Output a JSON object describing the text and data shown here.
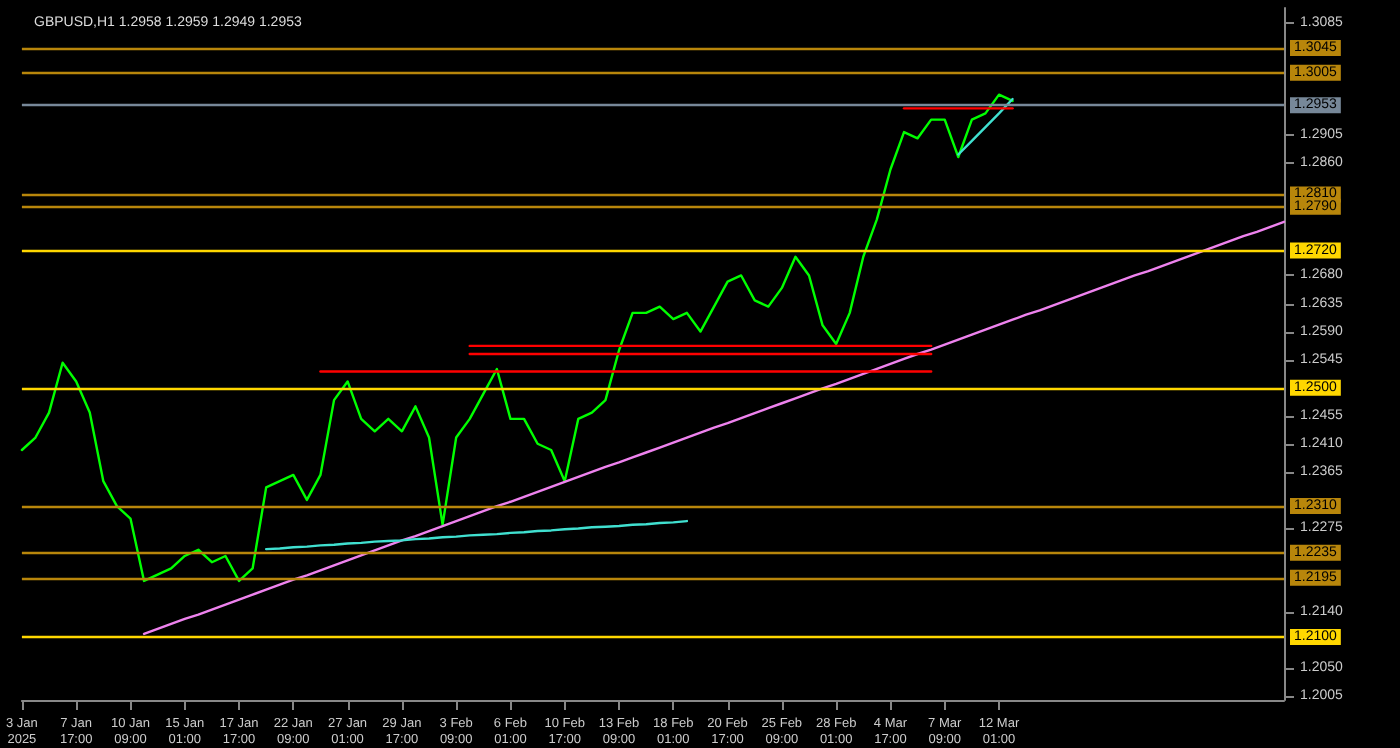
{
  "chart_data": {
    "type": "line",
    "title": "GBPUSD,H1 1.2958 1.2959 1.2949 1.2953",
    "marker": "none",
    "line_style": "solid",
    "categories": [
      "3 Jan 2025",
      null,
      null,
      null,
      "7 Jan 17:00",
      null,
      null,
      null,
      "10 Jan 09:00",
      null,
      null,
      null,
      "15 Jan 01:00",
      null,
      null,
      null,
      "17 Jan 17:00",
      null,
      null,
      null,
      "22 Jan 09:00",
      null,
      null,
      null,
      "27 Jan 01:00",
      null,
      null,
      null,
      "29 Jan 17:00",
      null,
      null,
      null,
      "3 Feb 09:00",
      null,
      null,
      null,
      "6 Feb 01:00",
      null,
      null,
      null,
      "10 Feb 17:00",
      null,
      null,
      null,
      "13 Feb 09:00",
      null,
      null,
      null,
      "18 Feb 01:00",
      null,
      null,
      null,
      "20 Feb 17:00",
      null,
      null,
      null,
      "25 Feb 09:00",
      null,
      null,
      null,
      "28 Feb 01:00",
      null,
      null,
      null,
      "4 Mar 17:00",
      null,
      null,
      null,
      "7 Mar 09:00",
      null,
      null,
      null,
      "12 Mar 01:00",
      null,
      null,
      null,
      null,
      null,
      null,
      null,
      null,
      null,
      null,
      null,
      null,
      null,
      null,
      null,
      null,
      null,
      null,
      null,
      null,
      null
    ],
    "ylim": [
      1.1999,
      1.3109
    ],
    "yticks": [
      1.2005,
      {
        "value": 1.205,
        "label": "1.2050"
      },
      {
        "value": 1.214,
        "label": "1.2140"
      },
      1.2275,
      1.2365,
      {
        "value": 1.241,
        "label": "1.2410"
      },
      1.2455,
      1.2545,
      {
        "value": 1.259,
        "label": "1.2590"
      },
      1.2635,
      {
        "value": 1.268,
        "label": "1.2680"
      },
      {
        "value": 1.286,
        "label": "1.2860"
      },
      1.2905,
      1.3085
    ],
    "series": [
      {
        "type": "line",
        "color": "#00ff00",
        "values": [
          1.24,
          1.242,
          1.246,
          1.254,
          1.251,
          1.246,
          1.235,
          1.231,
          1.229,
          1.219,
          1.22,
          1.221,
          1.223,
          1.224,
          1.222,
          1.223,
          1.219,
          1.221,
          1.234,
          1.235,
          1.236,
          1.232,
          1.236,
          1.248,
          1.251,
          1.245,
          1.243,
          1.245,
          1.243,
          1.247,
          1.242,
          1.228,
          1.242,
          1.245,
          1.249,
          1.253,
          1.245,
          1.245,
          1.241,
          1.24,
          1.235,
          1.245,
          1.246,
          1.248,
          1.256,
          1.262,
          1.262,
          1.263,
          1.261,
          1.262,
          1.259,
          1.263,
          1.267,
          1.268,
          1.264,
          1.263,
          1.266,
          1.271,
          1.268,
          1.26,
          1.257,
          1.262,
          1.271,
          1.277,
          1.285,
          1.291,
          1.29,
          1.293,
          1.293,
          1.287,
          1.293,
          1.294,
          1.297,
          1.296,
          null,
          null,
          null,
          null,
          null,
          null,
          null,
          null,
          null,
          null,
          null,
          null,
          null,
          null,
          null,
          null,
          null,
          null,
          null,
          null
        ]
      },
      {
        "type": "line",
        "color": "#ee82ee",
        "values": [
          null,
          null,
          null,
          null,
          null,
          null,
          null,
          null,
          null,
          1.2105,
          1.2113,
          1.2121,
          1.2129,
          1.2136,
          1.2144,
          1.2152,
          1.216,
          1.2168,
          1.2176,
          1.2184,
          1.2192,
          1.2199,
          1.2207,
          1.2215,
          1.2223,
          1.2231,
          1.2239,
          1.2247,
          1.2255,
          1.2262,
          1.227,
          1.2278,
          1.2286,
          1.2294,
          1.2302,
          1.231,
          1.2317,
          1.2325,
          1.2333,
          1.2341,
          1.2349,
          1.2357,
          1.2365,
          1.2373,
          1.238,
          1.2388,
          1.2396,
          1.2404,
          1.2412,
          1.242,
          1.2428,
          1.2436,
          1.2443,
          1.2451,
          1.2459,
          1.2467,
          1.2475,
          1.2483,
          1.2491,
          1.2499,
          1.2506,
          1.2514,
          1.2522,
          1.253,
          1.2538,
          1.2546,
          1.2554,
          1.2561,
          1.2569,
          1.2577,
          1.2585,
          1.2593,
          1.2601,
          1.2609,
          1.2617,
          1.2624,
          1.2632,
          1.264,
          1.2648,
          1.2656,
          1.2664,
          1.2672,
          1.268,
          1.2687,
          1.2695,
          1.2703,
          1.2711,
          1.2719,
          1.2727,
          1.2735,
          1.2743,
          1.275,
          1.2758,
          1.2766
        ]
      },
      {
        "type": "line",
        "color": "#40e0d0",
        "values": [
          null,
          null,
          null,
          null,
          null,
          null,
          null,
          null,
          null,
          null,
          null,
          null,
          null,
          null,
          null,
          null,
          null,
          null,
          1.2241,
          1.2242,
          1.2244,
          1.2245,
          1.2247,
          1.2248,
          1.225,
          1.2251,
          1.2253,
          1.2254,
          1.2255,
          1.2257,
          1.2258,
          1.226,
          1.2261,
          1.2263,
          1.2264,
          1.2265,
          1.2267,
          1.2268,
          1.227,
          1.2271,
          1.2273,
          1.2274,
          1.2276,
          1.2277,
          1.2278,
          1.228,
          1.2281,
          1.2283,
          1.2284,
          1.2286,
          null,
          null,
          null,
          null,
          null,
          null,
          null,
          null,
          null,
          null,
          null,
          null,
          null,
          null,
          null,
          null,
          null,
          null,
          null,
          null,
          null,
          null,
          null,
          null,
          null,
          null,
          null,
          null,
          null,
          null,
          null,
          null,
          null,
          null,
          null,
          null,
          null,
          null,
          null,
          null,
          null,
          null,
          null,
          null
        ]
      },
      {
        "type": "line",
        "color": "#40e0d0",
        "values": [
          null,
          null,
          null,
          null,
          null,
          null,
          null,
          null,
          null,
          null,
          null,
          null,
          null,
          null,
          null,
          null,
          null,
          null,
          null,
          null,
          null,
          null,
          null,
          null,
          null,
          null,
          null,
          null,
          null,
          null,
          null,
          null,
          null,
          null,
          null,
          null,
          null,
          null,
          null,
          null,
          null,
          null,
          null,
          null,
          null,
          null,
          null,
          null,
          null,
          null,
          null,
          null,
          null,
          null,
          null,
          null,
          null,
          null,
          null,
          null,
          null,
          null,
          null,
          null,
          null,
          null,
          null,
          null,
          null,
          1.2874,
          1.2896,
          1.2918,
          1.294,
          1.2963,
          null,
          null,
          null,
          null,
          null,
          null,
          null,
          null,
          null,
          null,
          null,
          null,
          null,
          null,
          null,
          null,
          null,
          null,
          null,
          null
        ]
      },
      {
        "type": "line",
        "color": "#ff0000",
        "values": [
          null,
          null,
          null,
          null,
          null,
          null,
          null,
          null,
          null,
          null,
          null,
          null,
          null,
          null,
          null,
          null,
          null,
          null,
          null,
          null,
          null,
          null,
          null,
          null,
          null,
          null,
          null,
          null,
          null,
          null,
          null,
          null,
          null,
          null,
          null,
          null,
          null,
          null,
          null,
          null,
          null,
          null,
          null,
          null,
          null,
          null,
          null,
          null,
          null,
          null,
          null,
          null,
          null,
          null,
          null,
          null,
          null,
          null,
          null,
          null,
          null,
          null,
          null,
          null,
          null,
          1.2948,
          1.2948,
          1.2948,
          1.2948,
          1.2948,
          1.2948,
          1.2948,
          1.2948,
          1.2948,
          null,
          null,
          null,
          null,
          null,
          null,
          null,
          null,
          null,
          null,
          null,
          null,
          null,
          null,
          null,
          null,
          null,
          null,
          null,
          null
        ]
      },
      {
        "type": "line",
        "color": "#ff0000",
        "values": [
          null,
          null,
          null,
          null,
          null,
          null,
          null,
          null,
          null,
          null,
          null,
          null,
          null,
          null,
          null,
          null,
          null,
          null,
          null,
          null,
          null,
          null,
          1.2526,
          1.2526,
          1.2526,
          1.2526,
          1.2526,
          1.2526,
          1.2526,
          1.2526,
          1.2526,
          1.2526,
          1.2526,
          1.2526,
          1.2526,
          1.2526,
          1.2526,
          1.2526,
          1.2526,
          1.2526,
          1.2526,
          1.2526,
          1.2526,
          1.2526,
          1.2526,
          1.2526,
          1.2526,
          1.2526,
          1.2526,
          1.2526,
          1.2526,
          1.2526,
          1.2526,
          1.2526,
          1.2526,
          1.2526,
          1.2526,
          1.2526,
          1.2526,
          1.2526,
          1.2526,
          1.2526,
          1.2526,
          1.2526,
          1.2526,
          1.2526,
          1.2526,
          1.2526,
          null,
          null,
          null,
          null,
          null,
          null,
          null,
          null,
          null,
          null,
          null,
          null,
          null,
          null,
          null,
          null,
          null,
          null,
          null,
          null,
          null,
          null,
          null,
          null,
          null,
          null
        ]
      },
      {
        "type": "line",
        "color": "#ff0000",
        "values": [
          null,
          null,
          null,
          null,
          null,
          null,
          null,
          null,
          null,
          null,
          null,
          null,
          null,
          null,
          null,
          null,
          null,
          null,
          null,
          null,
          null,
          null,
          null,
          null,
          null,
          null,
          null,
          null,
          null,
          null,
          null,
          null,
          null,
          1.2567,
          1.2567,
          1.2567,
          1.2567,
          1.2567,
          1.2567,
          1.2567,
          1.2567,
          1.2567,
          1.2567,
          1.2567,
          1.2567,
          1.2567,
          1.2567,
          1.2567,
          1.2567,
          1.2567,
          1.2567,
          1.2567,
          1.2567,
          1.2567,
          1.2567,
          1.2567,
          1.2567,
          1.2567,
          1.2567,
          1.2567,
          1.2567,
          1.2567,
          1.2567,
          1.2567,
          1.2567,
          1.2567,
          1.2567,
          1.2567,
          null,
          null,
          null,
          null,
          null,
          null,
          null,
          null,
          null,
          null,
          null,
          null,
          null,
          null,
          null,
          null,
          null,
          null,
          null,
          null,
          null,
          null,
          null,
          null,
          null,
          null
        ]
      },
      {
        "type": "line",
        "color": "#ff0000",
        "values": [
          null,
          null,
          null,
          null,
          null,
          null,
          null,
          null,
          null,
          null,
          null,
          null,
          null,
          null,
          null,
          null,
          null,
          null,
          null,
          null,
          null,
          null,
          null,
          null,
          null,
          null,
          null,
          null,
          null,
          null,
          null,
          null,
          null,
          1.2554,
          1.2554,
          1.2554,
          1.2554,
          1.2554,
          1.2554,
          1.2554,
          1.2554,
          1.2554,
          1.2554,
          1.2554,
          1.2554,
          1.2554,
          1.2554,
          1.2554,
          1.2554,
          1.2554,
          1.2554,
          1.2554,
          1.2554,
          1.2554,
          1.2554,
          1.2554,
          1.2554,
          1.2554,
          1.2554,
          1.2554,
          1.2554,
          1.2554,
          1.2554,
          1.2554,
          1.2554,
          1.2554,
          1.2554,
          1.2554,
          null,
          null,
          null,
          null,
          null,
          null,
          null,
          null,
          null,
          null,
          null,
          null,
          null,
          null,
          null,
          null,
          null,
          null,
          null,
          null,
          null,
          null,
          null,
          null,
          null,
          null
        ]
      }
    ],
    "ref_lines": [
      {
        "axis": "y",
        "value": 1.3045,
        "label": "1.3045",
        "color": "#b8860b"
      },
      {
        "axis": "y",
        "value": 1.3005,
        "label": "1.3005",
        "color": "#b8860b"
      },
      {
        "axis": "y",
        "value": 1.2953,
        "label": "1.2953",
        "color": "#778899"
      },
      {
        "axis": "y",
        "value": 1.281,
        "label": "1.2810",
        "color": "#b8860b"
      },
      {
        "axis": "y",
        "value": 1.279,
        "label": "1.2790",
        "color": "#b8860b"
      },
      {
        "axis": "y",
        "value": 1.272,
        "label": "1.2720",
        "color": "#ffd700"
      },
      {
        "axis": "y",
        "value": 1.25,
        "label": "1.2500",
        "color": "#ffd700"
      },
      {
        "axis": "y",
        "value": 1.231,
        "label": "1.2310",
        "color": "#b8860b"
      },
      {
        "axis": "y",
        "value": 1.2235,
        "label": "1.2235",
        "color": "#b8860b"
      },
      {
        "axis": "y",
        "value": 1.2195,
        "label": "1.2195",
        "color": "#b8860b"
      },
      {
        "axis": "y",
        "value": 1.21,
        "label": "1.2100",
        "color": "#ffd700"
      }
    ]
  }
}
